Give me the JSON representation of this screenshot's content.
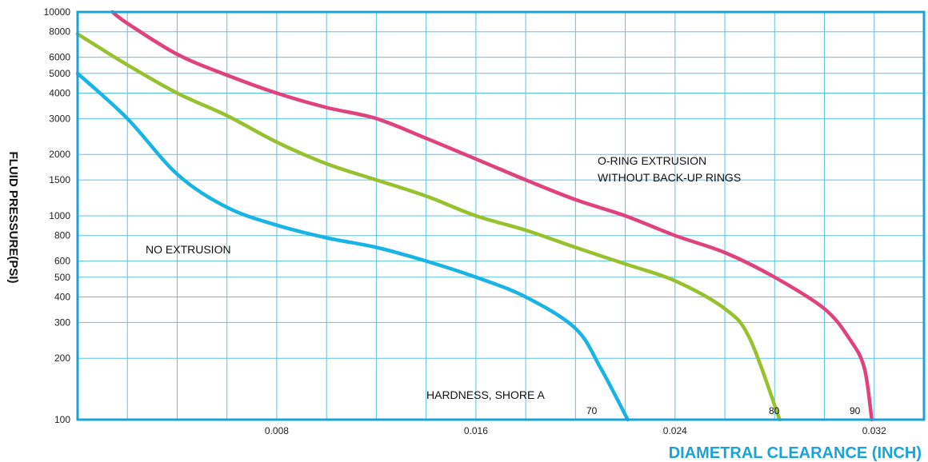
{
  "chart_data": {
    "type": "line",
    "title": "",
    "xlabel": "DIAMETRAL CLEARANCE (INCH)",
    "ylabel": "FLUID PRESSURE(PSI)",
    "xlim": [
      0,
      0.034
    ],
    "ylim": [
      100,
      10000
    ],
    "x_ticks": [
      0.008,
      0.016,
      0.024,
      0.032
    ],
    "x_tick_labels": [
      "0.008",
      "0.016",
      "0.024",
      "0.032"
    ],
    "y_ticks": [
      100,
      200,
      300,
      400,
      500,
      600,
      800,
      1000,
      1500,
      2000,
      3000,
      4000,
      5000,
      6000,
      8000,
      10000
    ],
    "y_tick_labels": [
      "100",
      "200",
      "300",
      "400",
      "500",
      "600",
      "800",
      "1000",
      "1500",
      "2000",
      "3000",
      "4000",
      "5000",
      "6000",
      "8000",
      "10000"
    ],
    "grid": true,
    "colors": {
      "frame": "#1aa3d6",
      "grid": "#5cc3e8",
      "xlabel": "#1aa3d6"
    },
    "series": [
      {
        "name": "70",
        "color": "#18b4e6",
        "x": [
          0,
          0.002,
          0.004,
          0.006,
          0.008,
          0.01,
          0.012,
          0.014,
          0.016,
          0.018,
          0.02,
          0.021,
          0.0221
        ],
        "y": [
          5000,
          3000,
          1600,
          1100,
          900,
          780,
          700,
          600,
          500,
          400,
          280,
          180,
          100
        ]
      },
      {
        "name": "80",
        "color": "#97c12d",
        "x": [
          0,
          0.002,
          0.004,
          0.006,
          0.008,
          0.01,
          0.012,
          0.014,
          0.016,
          0.018,
          0.02,
          0.022,
          0.024,
          0.026,
          0.027,
          0.0282
        ],
        "y": [
          7800,
          5500,
          4000,
          3100,
          2300,
          1800,
          1500,
          1250,
          1000,
          850,
          700,
          580,
          480,
          350,
          250,
          100
        ]
      },
      {
        "name": "90",
        "color": "#e0427e",
        "x": [
          0.0014,
          0.002,
          0.004,
          0.006,
          0.008,
          0.01,
          0.012,
          0.014,
          0.016,
          0.018,
          0.02,
          0.022,
          0.024,
          0.026,
          0.028,
          0.03,
          0.031,
          0.0316,
          0.0319
        ],
        "y": [
          10000,
          8800,
          6200,
          4900,
          4000,
          3400,
          3000,
          2400,
          1900,
          1500,
          1200,
          1000,
          800,
          660,
          500,
          350,
          250,
          180,
          100
        ]
      }
    ],
    "annotations": {
      "no_extrusion": "NO EXTRUSION",
      "extrusion_line1": "O-RING EXTRUSION",
      "extrusion_line2": "WITHOUT BACK-UP RINGS",
      "hardness": "HARDNESS, SHORE A"
    }
  }
}
